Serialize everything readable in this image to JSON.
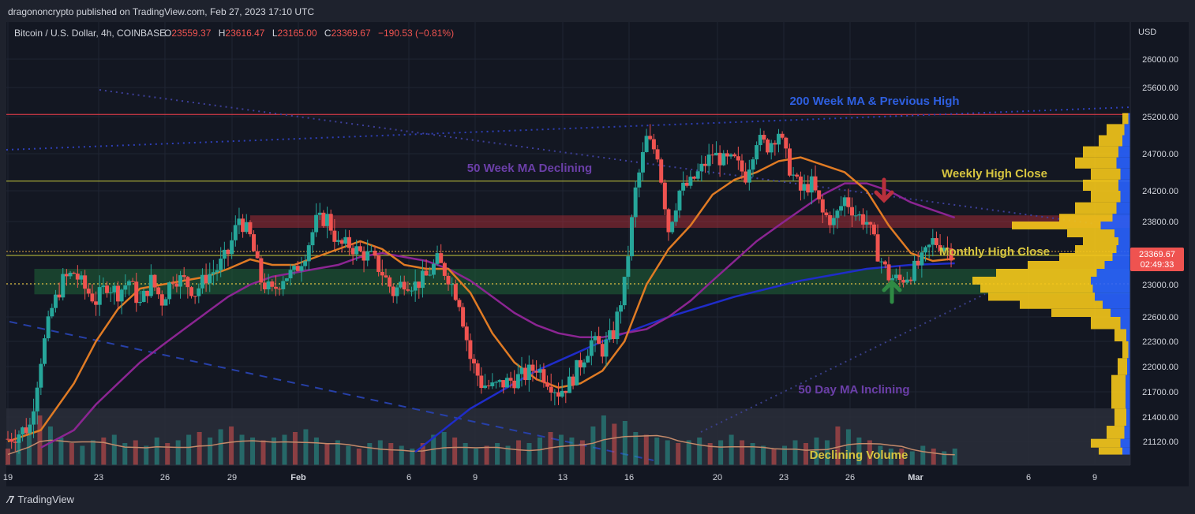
{
  "header": {
    "text": "dragononcrypto published on TradingView.com, Feb 27, 2023 17:10 UTC"
  },
  "footer": {
    "brand": "TradingView"
  },
  "colors": {
    "up": "#26a69a",
    "down": "#ef5350",
    "ma50d": "#e07b24",
    "ma50w": "#8b2592",
    "ma200w": "#1f2cc9",
    "resistance": "#c2303a",
    "weekly": "#c5c83c",
    "support": "#1f6b3a",
    "profile_up": "#2962ff",
    "profile_down": "#f5c71a"
  },
  "chart_data": {
    "type": "candlestick",
    "symbol_label": "Bitcoin / U.S. Dollar, 4h, COINBASE",
    "ohlc": {
      "o_label": "O",
      "o": "23559.37",
      "h_label": "H",
      "h": "23616.47",
      "l_label": "L",
      "l": "23165.00",
      "c_label": "C",
      "c": "23369.67",
      "change": "−190.53 (−0.81%)"
    },
    "y_axis": {
      "unit": "USD",
      "ticks": [
        "26000.00",
        "25600.00",
        "25200.00",
        "24700.00",
        "24200.00",
        "23800.00",
        "23000.00",
        "22600.00",
        "22300.00",
        "22000.00",
        "21700.00",
        "21400.00",
        "21120.00"
      ]
    },
    "x_axis": {
      "ticks": [
        "19",
        "23",
        "26",
        "29",
        "Feb",
        "6",
        "9",
        "13",
        "16",
        "20",
        "23",
        "26",
        "Mar",
        "6",
        "9"
      ]
    },
    "current_price": {
      "value": "23369.67",
      "countdown": "02:49:33"
    },
    "levels": {
      "previous_high": 25230,
      "weekly_high_close": 24330,
      "resistance_zone": [
        23720,
        23880
      ],
      "monthly_high_close_a": 23420,
      "monthly_high_close_b": 23370,
      "support_zone": [
        22880,
        23200
      ],
      "dotted_level": 23010
    },
    "annotations": [
      "200 Week MA & Previous High",
      "50 Week MA Declining",
      "Weekly High Close",
      "Monthly High Close",
      "50 Day MA Inclining",
      "Declining Volume"
    ],
    "candles": [
      {
        "x": 19,
        "y": 21150
      },
      {
        "x": 19.5,
        "y": 21220
      },
      {
        "x": 20,
        "y": 21300
      },
      {
        "x": 20.5,
        "y": 22100
      },
      {
        "x": 21,
        "y": 22700
      },
      {
        "x": 21.5,
        "y": 23050
      },
      {
        "x": 22,
        "y": 23150
      },
      {
        "x": 22.5,
        "y": 22950
      },
      {
        "x": 23,
        "y": 22800
      },
      {
        "x": 23.5,
        "y": 23000
      },
      {
        "x": 24,
        "y": 22900
      },
      {
        "x": 24.5,
        "y": 23050
      },
      {
        "x": 25,
        "y": 22750
      },
      {
        "x": 25.5,
        "y": 23050
      },
      {
        "x": 26,
        "y": 22800
      },
      {
        "x": 26.5,
        "y": 23100
      },
      {
        "x": 27,
        "y": 23050
      },
      {
        "x": 27.5,
        "y": 22900
      },
      {
        "x": 28,
        "y": 23100
      },
      {
        "x": 28.5,
        "y": 23200
      },
      {
        "x": 29,
        "y": 23400
      },
      {
        "x": 29.5,
        "y": 23850
      },
      {
        "x": 30,
        "y": 23600
      },
      {
        "x": 30.5,
        "y": 23050
      },
      {
        "x": 31,
        "y": 22900
      },
      {
        "x": 31.5,
        "y": 23100
      },
      {
        "x": 32,
        "y": 23150
      },
      {
        "x": 32.5,
        "y": 23400
      },
      {
        "x": 33,
        "y": 23800
      },
      {
        "x": 33.5,
        "y": 23850
      },
      {
        "x": 34,
        "y": 23500
      },
      {
        "x": 34.5,
        "y": 23500
      },
      {
        "x": 35,
        "y": 23400
      },
      {
        "x": 35.5,
        "y": 23350
      },
      {
        "x": 36,
        "y": 23150
      },
      {
        "x": 36.5,
        "y": 22900
      },
      {
        "x": 37,
        "y": 23050
      },
      {
        "x": 37.5,
        "y": 23000
      },
      {
        "x": 38,
        "y": 23100
      },
      {
        "x": 38.5,
        "y": 23300
      },
      {
        "x": 39,
        "y": 23100
      },
      {
        "x": 39.5,
        "y": 22800
      },
      {
        "x": 40,
        "y": 22100
      },
      {
        "x": 40.5,
        "y": 21800
      },
      {
        "x": 41,
        "y": 21750
      },
      {
        "x": 41.5,
        "y": 21800
      },
      {
        "x": 42,
        "y": 21850
      },
      {
        "x": 42.5,
        "y": 21900
      },
      {
        "x": 43,
        "y": 22000
      },
      {
        "x": 43.5,
        "y": 21850
      },
      {
        "x": 44,
        "y": 21700
      },
      {
        "x": 44.5,
        "y": 21800
      },
      {
        "x": 45,
        "y": 22050
      },
      {
        "x": 45.5,
        "y": 22300
      },
      {
        "x": 46,
        "y": 22200
      },
      {
        "x": 46.5,
        "y": 22400
      },
      {
        "x": 47,
        "y": 23000
      },
      {
        "x": 47.5,
        "y": 24200
      },
      {
        "x": 48,
        "y": 24900
      },
      {
        "x": 48.5,
        "y": 24700
      },
      {
        "x": 49,
        "y": 23700
      },
      {
        "x": 49.5,
        "y": 24200
      },
      {
        "x": 50,
        "y": 24300
      },
      {
        "x": 50.5,
        "y": 24500
      },
      {
        "x": 51,
        "y": 24700
      },
      {
        "x": 51.5,
        "y": 24600
      },
      {
        "x": 52,
        "y": 24600
      },
      {
        "x": 52.5,
        "y": 24400
      },
      {
        "x": 53,
        "y": 24900
      },
      {
        "x": 53.5,
        "y": 24800
      },
      {
        "x": 54,
        "y": 25000
      },
      {
        "x": 54.5,
        "y": 24500
      },
      {
        "x": 55,
        "y": 24200
      },
      {
        "x": 55.5,
        "y": 24300
      },
      {
        "x": 56,
        "y": 23900
      },
      {
        "x": 56.5,
        "y": 23800
      },
      {
        "x": 57,
        "y": 24100
      },
      {
        "x": 57.5,
        "y": 23900
      },
      {
        "x": 58,
        "y": 23800
      },
      {
        "x": 58.5,
        "y": 23400
      },
      {
        "x": 59,
        "y": 23100
      },
      {
        "x": 59.5,
        "y": 23050
      },
      {
        "x": 60,
        "y": 23150
      },
      {
        "x": 60.5,
        "y": 23300
      },
      {
        "x": 61,
        "y": 23550
      },
      {
        "x": 61.5,
        "y": 23500
      },
      {
        "x": 62,
        "y": 23370
      }
    ],
    "volume_relative": [
      0.3,
      0.45,
      0.6,
      0.9,
      0.7,
      0.5,
      0.4,
      0.35,
      0.45,
      0.5,
      0.55,
      0.4,
      0.45,
      0.35,
      0.5,
      0.4,
      0.45,
      0.55,
      0.6,
      0.5,
      0.65,
      0.7,
      0.55,
      0.5,
      0.45,
      0.5,
      0.55,
      0.6,
      0.65,
      0.5,
      0.4,
      0.45,
      0.35,
      0.3,
      0.4,
      0.45,
      0.4,
      0.35,
      0.3,
      0.4,
      0.55,
      0.6,
      0.5,
      0.4,
      0.3,
      0.35,
      0.4,
      0.35,
      0.45,
      0.4,
      0.5,
      0.6,
      0.55,
      0.5,
      0.45,
      0.7,
      0.9,
      0.75,
      0.8,
      0.6,
      0.55,
      0.5,
      0.45,
      0.4,
      0.45,
      0.5,
      0.4,
      0.45,
      0.55,
      0.45,
      0.4,
      0.35,
      0.3,
      0.35,
      0.45,
      0.4,
      0.5,
      0.45,
      0.7,
      0.65,
      0.5,
      0.45,
      0.35,
      0.3,
      0.3,
      0.25,
      0.35,
      0.3,
      0.25,
      0.3
    ],
    "ma_50_day": [
      {
        "x": 19,
        "y": 21120
      },
      {
        "x": 20.5,
        "y": 21250
      },
      {
        "x": 22,
        "y": 21800
      },
      {
        "x": 23,
        "y": 22300
      },
      {
        "x": 24,
        "y": 22700
      },
      {
        "x": 25,
        "y": 22950
      },
      {
        "x": 26,
        "y": 23000
      },
      {
        "x": 27,
        "y": 23050
      },
      {
        "x": 28,
        "y": 23100
      },
      {
        "x": 29,
        "y": 23200
      },
      {
        "x": 30,
        "y": 23320
      },
      {
        "x": 31,
        "y": 23250
      },
      {
        "x": 32,
        "y": 23250
      },
      {
        "x": 33,
        "y": 23350
      },
      {
        "x": 34,
        "y": 23450
      },
      {
        "x": 35,
        "y": 23550
      },
      {
        "x": 36,
        "y": 23450
      },
      {
        "x": 37,
        "y": 23250
      },
      {
        "x": 38,
        "y": 23200
      },
      {
        "x": 39,
        "y": 23200
      },
      {
        "x": 40,
        "y": 22900
      },
      {
        "x": 41,
        "y": 22400
      },
      {
        "x": 42,
        "y": 22050
      },
      {
        "x": 43,
        "y": 21850
      },
      {
        "x": 44,
        "y": 21750
      },
      {
        "x": 45,
        "y": 21800
      },
      {
        "x": 46,
        "y": 21950
      },
      {
        "x": 47,
        "y": 22300
      },
      {
        "x": 48,
        "y": 23000
      },
      {
        "x": 49,
        "y": 23450
      },
      {
        "x": 50,
        "y": 23750
      },
      {
        "x": 51,
        "y": 24150
      },
      {
        "x": 52,
        "y": 24350
      },
      {
        "x": 53,
        "y": 24450
      },
      {
        "x": 54,
        "y": 24600
      },
      {
        "x": 55,
        "y": 24650
      },
      {
        "x": 56,
        "y": 24550
      },
      {
        "x": 57,
        "y": 24450
      },
      {
        "x": 58,
        "y": 24200
      },
      {
        "x": 59,
        "y": 23750
      },
      {
        "x": 60,
        "y": 23400
      },
      {
        "x": 61,
        "y": 23300
      },
      {
        "x": 62,
        "y": 23330
      }
    ],
    "ma_50_week": [
      {
        "x": 20.5,
        "y": 21050
      },
      {
        "x": 22,
        "y": 21250
      },
      {
        "x": 23,
        "y": 21550
      },
      {
        "x": 24,
        "y": 21800
      },
      {
        "x": 25,
        "y": 22050
      },
      {
        "x": 26,
        "y": 22250
      },
      {
        "x": 27,
        "y": 22450
      },
      {
        "x": 28,
        "y": 22650
      },
      {
        "x": 29,
        "y": 22850
      },
      {
        "x": 30,
        "y": 23000
      },
      {
        "x": 31,
        "y": 23100
      },
      {
        "x": 32,
        "y": 23150
      },
      {
        "x": 33,
        "y": 23200
      },
      {
        "x": 34,
        "y": 23250
      },
      {
        "x": 35,
        "y": 23350
      },
      {
        "x": 36,
        "y": 23400
      },
      {
        "x": 37,
        "y": 23350
      },
      {
        "x": 38,
        "y": 23300
      },
      {
        "x": 39,
        "y": 23200
      },
      {
        "x": 40,
        "y": 23050
      },
      {
        "x": 41,
        "y": 22850
      },
      {
        "x": 42,
        "y": 22650
      },
      {
        "x": 43,
        "y": 22500
      },
      {
        "x": 44,
        "y": 22400
      },
      {
        "x": 45,
        "y": 22350
      },
      {
        "x": 46,
        "y": 22350
      },
      {
        "x": 47,
        "y": 22400
      },
      {
        "x": 48,
        "y": 22450
      },
      {
        "x": 49,
        "y": 22600
      },
      {
        "x": 50,
        "y": 22800
      },
      {
        "x": 51,
        "y": 23050
      },
      {
        "x": 52,
        "y": 23300
      },
      {
        "x": 53,
        "y": 23550
      },
      {
        "x": 54,
        "y": 23750
      },
      {
        "x": 55,
        "y": 23950
      },
      {
        "x": 56,
        "y": 24150
      },
      {
        "x": 57,
        "y": 24300
      },
      {
        "x": 58,
        "y": 24300
      },
      {
        "x": 59,
        "y": 24200
      },
      {
        "x": 60,
        "y": 24050
      },
      {
        "x": 61,
        "y": 23950
      },
      {
        "x": 62,
        "y": 23850
      }
    ],
    "ma_200_week": [
      {
        "x": 37.5,
        "y": 21000
      },
      {
        "x": 40,
        "y": 21500
      },
      {
        "x": 43,
        "y": 21950
      },
      {
        "x": 46,
        "y": 22300
      },
      {
        "x": 49,
        "y": 22600
      },
      {
        "x": 52,
        "y": 22850
      },
      {
        "x": 55,
        "y": 23050
      },
      {
        "x": 58,
        "y": 23200
      },
      {
        "x": 60,
        "y": 23250
      },
      {
        "x": 62,
        "y": 23270
      }
    ],
    "volume_profile_relative": [
      {
        "y": 25250,
        "w": 0.05
      },
      {
        "y": 25100,
        "w": 0.15
      },
      {
        "y": 24950,
        "w": 0.2
      },
      {
        "y": 24800,
        "w": 0.3
      },
      {
        "y": 24650,
        "w": 0.35
      },
      {
        "y": 24500,
        "w": 0.25
      },
      {
        "y": 24350,
        "w": 0.3
      },
      {
        "y": 24200,
        "w": 0.25
      },
      {
        "y": 24050,
        "w": 0.35
      },
      {
        "y": 23900,
        "w": 0.45
      },
      {
        "y": 23800,
        "w": 0.75
      },
      {
        "y": 23700,
        "w": 0.4
      },
      {
        "y": 23600,
        "w": 0.3
      },
      {
        "y": 23500,
        "w": 0.35
      },
      {
        "y": 23400,
        "w": 0.45
      },
      {
        "y": 23300,
        "w": 0.65
      },
      {
        "y": 23200,
        "w": 0.85
      },
      {
        "y": 23100,
        "w": 1.0
      },
      {
        "y": 23000,
        "w": 0.95
      },
      {
        "y": 22900,
        "w": 0.9
      },
      {
        "y": 22800,
        "w": 0.7
      },
      {
        "y": 22700,
        "w": 0.5
      },
      {
        "y": 22600,
        "w": 0.25
      },
      {
        "y": 22450,
        "w": 0.1
      },
      {
        "y": 22300,
        "w": 0.05
      },
      {
        "y": 22100,
        "w": 0.08
      },
      {
        "y": 21900,
        "w": 0.12
      },
      {
        "y": 21700,
        "w": 0.12
      },
      {
        "y": 21500,
        "w": 0.1
      },
      {
        "y": 21300,
        "w": 0.15
      },
      {
        "y": 21150,
        "w": 0.25
      },
      {
        "y": 21050,
        "w": 0.2
      }
    ]
  }
}
